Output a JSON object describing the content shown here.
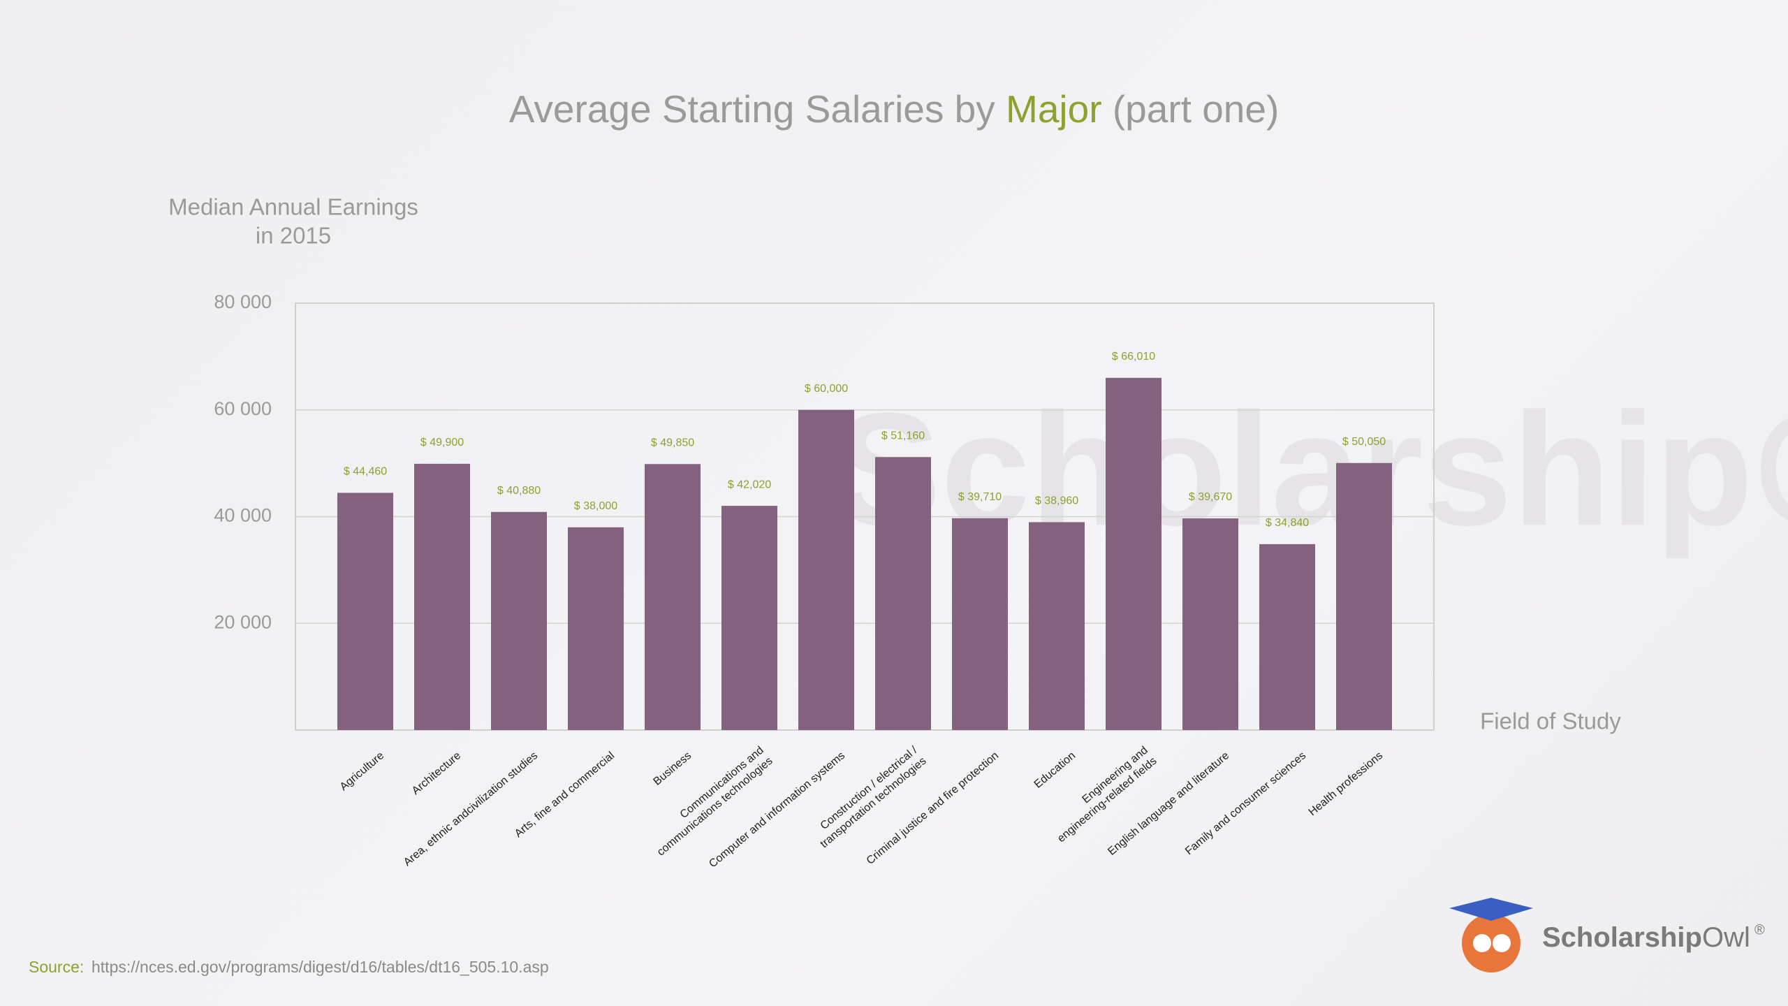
{
  "chart_data": {
    "type": "bar",
    "title_parts": [
      "Average Starting Salaries by",
      "Major",
      "(part one)"
    ],
    "ylabel": [
      "Median Annual Earnings",
      "in 2015"
    ],
    "xlabel": "Field of Study",
    "categories": [
      [
        "Agriculture"
      ],
      [
        "Architecture"
      ],
      [
        "Area, ethnic andcivilization studies"
      ],
      [
        "Arts, fine and commercial"
      ],
      [
        "Business"
      ],
      [
        "Communications and",
        "communications technologies"
      ],
      [
        "Computer and information systems"
      ],
      [
        "Construction / electrical /",
        "transportation technologies"
      ],
      [
        "Criminal justice and fire protection"
      ],
      [
        "Education"
      ],
      [
        "Engineering and",
        "engineering-related fields"
      ],
      [
        "English language and literature"
      ],
      [
        "Family and consumer sciences"
      ],
      [
        "Health professions"
      ]
    ],
    "values": [
      44460,
      49900,
      40880,
      38000,
      49850,
      42020,
      60000,
      51160,
      39710,
      38960,
      66010,
      39670,
      34840,
      50050
    ],
    "value_labels": [
      "$ 44,460",
      "$ 49,900",
      "$ 40,880",
      "$ 38,000",
      "$ 49,850",
      "$ 42,020",
      "$ 60,000",
      "$ 51,160",
      "$ 39,710",
      "$ 38,960",
      "$ 66,010",
      "$ 39,670",
      "$ 34,840",
      "$ 50,050"
    ],
    "color": "#84617f",
    "ylim": [
      0,
      80000
    ],
    "yticks": [
      {
        "value": 20000,
        "label": "20 000"
      },
      {
        "value": 40000,
        "label": "40 000"
      },
      {
        "value": 60000,
        "label": "60 000"
      },
      {
        "value": 80000,
        "label": "80 000"
      }
    ],
    "grid": true
  },
  "source": {
    "label": "Source:",
    "url": "https://nces.ed.gov/programs/digest/d16/tables/dt16_505.10.asp"
  },
  "logo": {
    "bold": "Scholarship",
    "light": "Owl",
    "mark": "®"
  }
}
